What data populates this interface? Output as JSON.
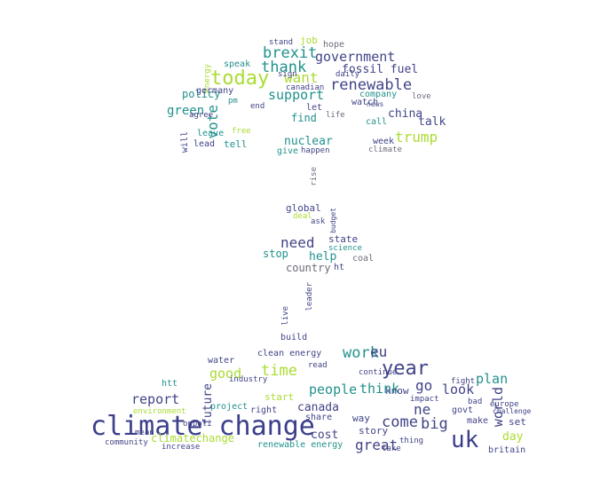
{
  "cloud": {
    "palette": {
      "dark_blue": "#3b3f8c",
      "indigo": "#414487",
      "blue": "#355f8d",
      "teal": "#21918c",
      "green": "#3b9a6b",
      "light_green": "#5ec962",
      "yellow_green": "#aadc32",
      "gray": "#6b6b7b"
    },
    "words": [
      {
        "text": "climate change"
      },
      {
        "text": "uk"
      },
      {
        "text": "year"
      },
      {
        "text": "today"
      },
      {
        "text": "renewable"
      },
      {
        "text": "government"
      },
      {
        "text": "brexit"
      },
      {
        "text": "thank"
      },
      {
        "text": "want"
      },
      {
        "text": "support"
      },
      {
        "text": "trump"
      },
      {
        "text": "fossil fuel"
      },
      {
        "text": "vote"
      },
      {
        "text": "green"
      },
      {
        "text": "china"
      },
      {
        "text": "talk"
      },
      {
        "text": "nuclear"
      },
      {
        "text": "find"
      },
      {
        "text": "policy"
      },
      {
        "text": "need"
      },
      {
        "text": "help"
      },
      {
        "text": "country"
      },
      {
        "text": "stop"
      },
      {
        "text": "global"
      },
      {
        "text": "state"
      },
      {
        "text": "science"
      },
      {
        "text": "coal"
      },
      {
        "text": "work"
      },
      {
        "text": "eu"
      },
      {
        "text": "time"
      },
      {
        "text": "good"
      },
      {
        "text": "people"
      },
      {
        "text": "think"
      },
      {
        "text": "go"
      },
      {
        "text": "look"
      },
      {
        "text": "plan"
      },
      {
        "text": "world"
      },
      {
        "text": "canada"
      },
      {
        "text": "report"
      },
      {
        "text": "come"
      },
      {
        "text": "big"
      },
      {
        "text": "great"
      },
      {
        "text": "day"
      },
      {
        "text": "cost"
      },
      {
        "text": "future"
      },
      {
        "text": "climatechange"
      },
      {
        "text": "renewable energy"
      },
      {
        "text": "clean energy"
      },
      {
        "text": "story"
      },
      {
        "text": "britain"
      },
      {
        "text": "water"
      },
      {
        "text": "start"
      },
      {
        "text": "share"
      },
      {
        "text": "make"
      },
      {
        "text": "set"
      },
      {
        "text": "know"
      },
      {
        "text": "way"
      },
      {
        "text": "right"
      },
      {
        "text": "project"
      },
      {
        "text": "community"
      },
      {
        "text": "increase"
      },
      {
        "text": "mean"
      },
      {
        "text": "environment"
      },
      {
        "text": "onpoli"
      },
      {
        "text": "build"
      },
      {
        "text": "read"
      },
      {
        "text": "continue"
      },
      {
        "text": "take"
      },
      {
        "text": "thing"
      },
      {
        "text": "europe"
      },
      {
        "text": "impact"
      },
      {
        "text": "industry"
      },
      {
        "text": "job"
      },
      {
        "text": "hope"
      },
      {
        "text": "stand"
      },
      {
        "text": "speak"
      },
      {
        "text": "energy"
      },
      {
        "text": "germany"
      },
      {
        "text": "canadian"
      },
      {
        "text": "daily"
      },
      {
        "text": "company"
      },
      {
        "text": "watch"
      },
      {
        "text": "life"
      },
      {
        "text": "let"
      },
      {
        "text": "end"
      },
      {
        "text": "leave"
      },
      {
        "text": "lead"
      },
      {
        "text": "tell"
      },
      {
        "text": "free"
      },
      {
        "text": "will"
      },
      {
        "text": "give"
      },
      {
        "text": "happen"
      },
      {
        "text": "call"
      },
      {
        "text": "week"
      },
      {
        "text": "love"
      },
      {
        "text": "climate"
      },
      {
        "text": "rise"
      },
      {
        "text": "deal"
      },
      {
        "text": "ask"
      },
      {
        "text": "live"
      },
      {
        "text": "leader"
      },
      {
        "text": "sign"
      },
      {
        "text": "agree"
      },
      {
        "text": "pm"
      },
      {
        "text": "fight"
      },
      {
        "text": "bad"
      },
      {
        "text": "challenge"
      },
      {
        "text": "budget"
      },
      {
        "text": "news"
      },
      {
        "text": "ne"
      },
      {
        "text": "govt"
      },
      {
        "text": "htt"
      },
      {
        "text": "ht"
      }
    ]
  }
}
